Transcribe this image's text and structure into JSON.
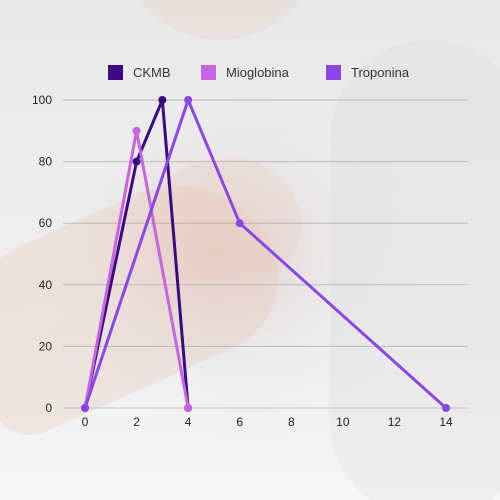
{
  "chart_data": {
    "type": "line",
    "x": [
      0,
      2,
      3,
      4,
      6,
      14
    ],
    "x_ticks": [
      "0",
      "2",
      "4",
      "6",
      "8",
      "10",
      "12",
      "14"
    ],
    "y_ticks": [
      "0",
      "20",
      "40",
      "60",
      "80",
      "100"
    ],
    "xlim": [
      0,
      14
    ],
    "ylim": [
      0,
      100
    ],
    "grid": "horizontal",
    "legend_placement": "top",
    "title": "",
    "xlabel": "",
    "ylabel": "",
    "series": [
      {
        "name": "CKMB",
        "color": "#3b0a82",
        "points": [
          [
            0,
            0
          ],
          [
            2,
            80
          ],
          [
            3,
            100
          ],
          [
            4,
            0
          ]
        ]
      },
      {
        "name": "Mioglobina",
        "color": "#c566e0",
        "points": [
          [
            0,
            0
          ],
          [
            2,
            90
          ],
          [
            4,
            0
          ]
        ]
      },
      {
        "name": "Troponina",
        "color": "#8b46e6",
        "points": [
          [
            0,
            0
          ],
          [
            4,
            100
          ],
          [
            6,
            60
          ],
          [
            14,
            0
          ]
        ]
      }
    ]
  }
}
